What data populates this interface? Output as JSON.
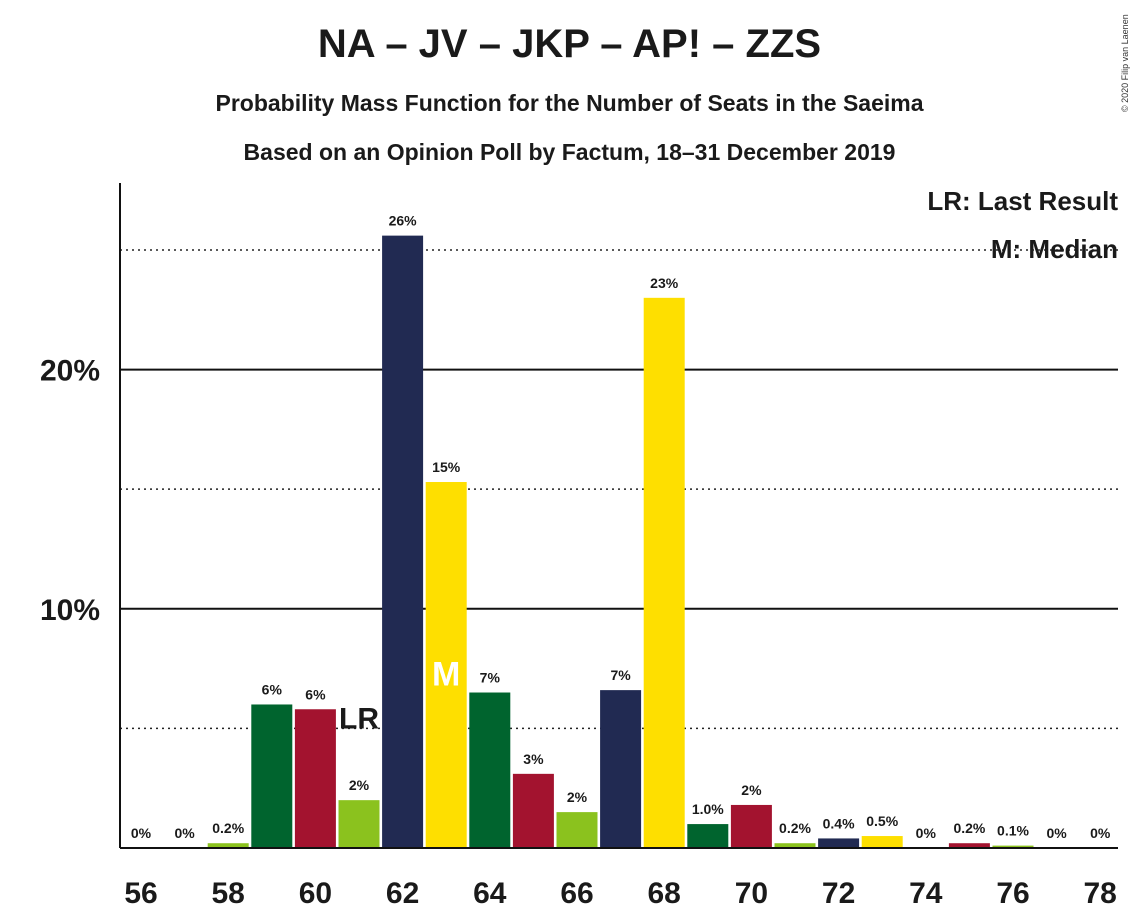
{
  "header": {
    "title": "NA – JV – JKP – AP! – ZZS",
    "subtitle1": "Probability Mass Function for the Number of Seats in the Saeima",
    "subtitle2": "Based on an Opinion Poll by Factum, 18–31 December 2019",
    "copyright": "© 2020 Filip van Laenen"
  },
  "legend": {
    "last_result": "LR: Last Result",
    "median": "M: Median"
  },
  "colors": {
    "green": "#00642e",
    "red": "#a3132f",
    "lime": "#8bc21e",
    "navy": "#212a52",
    "yellow": "#fedf00"
  },
  "chart_data": {
    "type": "bar",
    "x": [
      56,
      57,
      58,
      59,
      60,
      61,
      62,
      63,
      64,
      65,
      66,
      67,
      68,
      69,
      70,
      71,
      72,
      73,
      74,
      75,
      76,
      77,
      78
    ],
    "values": [
      0,
      0,
      0.2,
      6.0,
      5.8,
      2.0,
      25.6,
      15.3,
      6.5,
      3.1,
      1.5,
      6.6,
      23.0,
      1.0,
      1.8,
      0.2,
      0.4,
      0.5,
      0,
      0.2,
      0.1,
      0,
      0
    ],
    "labels": [
      "0%",
      "0%",
      "0.2%",
      "6%",
      "6%",
      "2%",
      "26%",
      "15%",
      "7%",
      "3%",
      "2%",
      "7%",
      "23%",
      "1.0%",
      "2%",
      "0.2%",
      "0.4%",
      "0.5%",
      "0%",
      "0.2%",
      "0.1%",
      "0%",
      "0%"
    ],
    "bar_colors": [
      "green",
      "red",
      "lime",
      "green",
      "red",
      "lime",
      "navy",
      "yellow",
      "green",
      "red",
      "lime",
      "navy",
      "yellow",
      "green",
      "red",
      "lime",
      "navy",
      "yellow",
      "green",
      "red",
      "lime",
      "navy",
      "yellow"
    ],
    "x_tick_labels": [
      "56",
      "58",
      "60",
      "62",
      "64",
      "66",
      "68",
      "70",
      "72",
      "74",
      "76",
      "78"
    ],
    "y_ticks": [
      {
        "value": 10,
        "label": "10%"
      },
      {
        "value": 20,
        "label": "20%"
      }
    ],
    "ylim": [
      0,
      27.8
    ],
    "major_gridlines": [
      10,
      20
    ],
    "minor_gridlines": [
      5,
      15,
      25
    ],
    "last_result": {
      "seats": 61,
      "label": "LR"
    },
    "median": {
      "seats": 63,
      "label": "M"
    },
    "legend_placement": "top-right"
  }
}
